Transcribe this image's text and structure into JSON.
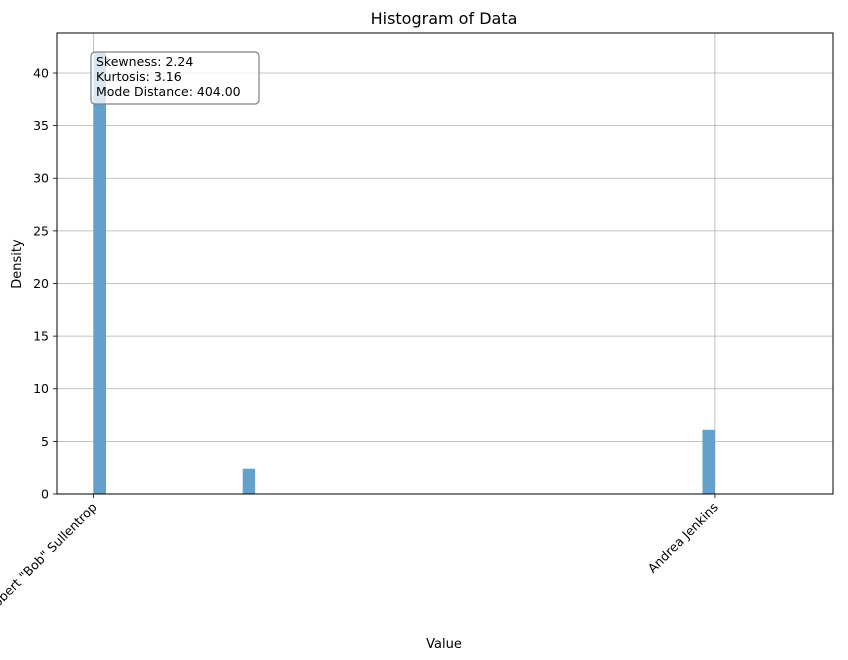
{
  "chart_data": {
    "type": "bar",
    "title": "Histogram of Data",
    "xlabel": "Value",
    "ylabel": "Density",
    "xlim": [
      -23.8,
      480.8
    ],
    "ylim": [
      0,
      43.8
    ],
    "yticks": [
      0,
      5,
      10,
      15,
      20,
      25,
      30,
      35,
      40
    ],
    "xticks": [
      {
        "value": 0,
        "label": "Robert \"Bob\" Sullentrop"
      },
      {
        "value": 404,
        "label": "Andrea Jenkins"
      }
    ],
    "bins": [
      {
        "x0": 0,
        "x1": 8.08,
        "density": 42.0
      },
      {
        "x0": 96.96,
        "x1": 105.04,
        "density": 2.4
      },
      {
        "x0": 395.92,
        "x1": 404,
        "density": 6.1
      }
    ],
    "grid": true,
    "bar_color": "#5b9bc8",
    "annotation": {
      "lines": [
        "Skewness: 2.24",
        "Kurtosis: 3.16",
        "Mode Distance: 404.00"
      ],
      "placement": "top-left"
    }
  }
}
